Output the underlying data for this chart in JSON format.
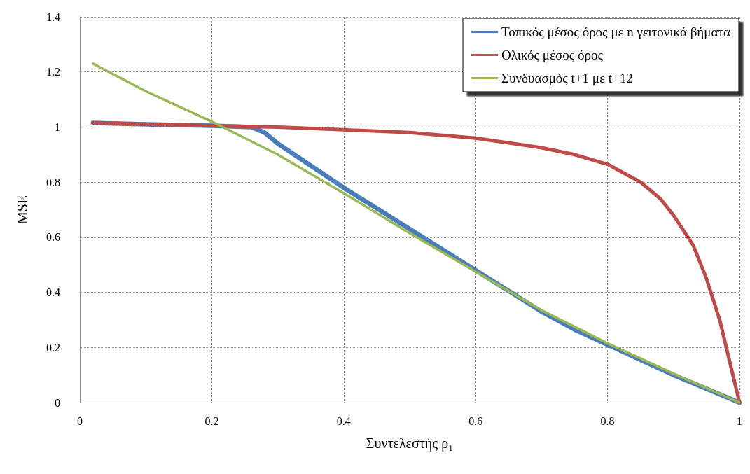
{
  "chart_data": {
    "type": "line",
    "xlabel": "Συντελεστής ρ₁",
    "ylabel": "MSE",
    "xlim": [
      0,
      1
    ],
    "xticks": [
      0,
      0.2,
      0.4,
      0.6,
      0.8,
      1
    ],
    "ylim": [
      0,
      1.4
    ],
    "yticks": [
      0,
      0.2,
      0.4,
      0.6,
      0.8,
      1,
      1.2,
      1.4
    ],
    "grid": true,
    "legend": "top right",
    "marker": "none",
    "line_style": "solid",
    "series": [
      {
        "name": "Τοπικός μέσος όρος με n γειτονικά βήματα",
        "color": "#4a7ebb",
        "x": [
          0.02,
          0.1,
          0.2,
          0.26,
          0.28,
          0.3,
          0.35,
          0.4,
          0.45,
          0.5,
          0.55,
          0.6,
          0.65,
          0.7,
          0.75,
          0.8,
          0.85,
          0.9,
          0.95,
          1.0
        ],
        "values": [
          1.015,
          1.01,
          1.005,
          1.0,
          0.98,
          0.94,
          0.86,
          0.78,
          0.705,
          0.63,
          0.555,
          0.48,
          0.405,
          0.33,
          0.265,
          0.21,
          0.155,
          0.1,
          0.05,
          0
        ]
      },
      {
        "name": "Ολικός μέσος όρος",
        "color": "#be4b48",
        "x": [
          0.02,
          0.2,
          0.3,
          0.4,
          0.5,
          0.6,
          0.7,
          0.75,
          0.8,
          0.85,
          0.88,
          0.9,
          0.93,
          0.95,
          0.97,
          0.99,
          1.0
        ],
        "values": [
          1.015,
          1.005,
          1.0,
          0.99,
          0.98,
          0.96,
          0.925,
          0.9,
          0.865,
          0.8,
          0.74,
          0.68,
          0.57,
          0.45,
          0.3,
          0.1,
          0
        ]
      },
      {
        "name": "Συνδυασμός t+1 με t+12",
        "color": "#98b954",
        "x": [
          0.02,
          0.1,
          0.2,
          0.3,
          0.4,
          0.5,
          0.6,
          0.7,
          0.8,
          0.9,
          1.0
        ],
        "values": [
          1.23,
          1.13,
          1.02,
          0.9,
          0.76,
          0.615,
          0.475,
          0.335,
          0.215,
          0.105,
          0
        ]
      }
    ]
  }
}
